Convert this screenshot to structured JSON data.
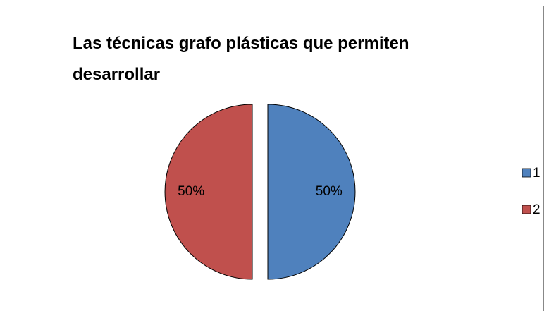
{
  "chart_data": {
    "type": "pie",
    "title": "Las técnicas grafo plásticas que permiten desarrollar",
    "categories": [
      "1",
      "2"
    ],
    "values": [
      50,
      50
    ],
    "value_labels": [
      "50%",
      "50%"
    ],
    "colors": [
      "#4f81bd",
      "#c0504d"
    ],
    "legend": "right"
  }
}
